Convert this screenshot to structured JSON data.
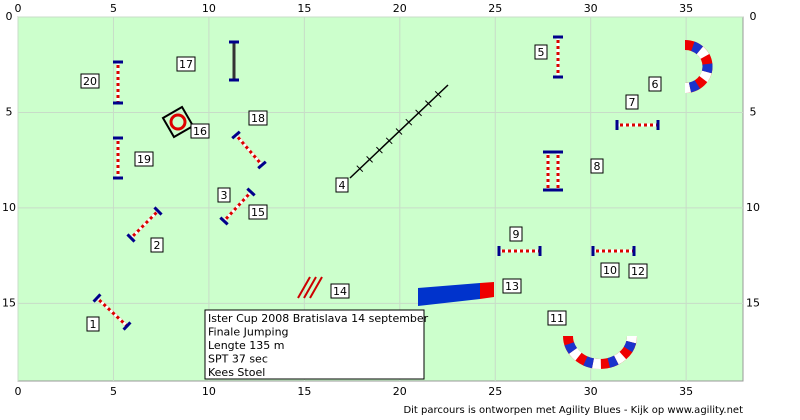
{
  "axes": {
    "x_ticks": [
      0,
      5,
      10,
      15,
      20,
      25,
      30,
      35
    ],
    "y_ticks": [
      0,
      5,
      10,
      15
    ]
  },
  "obstacles": [
    {
      "label": "1"
    },
    {
      "label": "2"
    },
    {
      "label": "3"
    },
    {
      "label": "4"
    },
    {
      "label": "5"
    },
    {
      "label": "6"
    },
    {
      "label": "7"
    },
    {
      "label": "8"
    },
    {
      "label": "9"
    },
    {
      "label": "10"
    },
    {
      "label": "11"
    },
    {
      "label": "12"
    },
    {
      "label": "13"
    },
    {
      "label": "14"
    },
    {
      "label": "15"
    },
    {
      "label": "16"
    },
    {
      "label": "17"
    },
    {
      "label": "18"
    },
    {
      "label": "19"
    },
    {
      "label": "20"
    }
  ],
  "info": {
    "lines": [
      "Ister Cup 2008 Bratislava 14 september",
      "Finale Jumping",
      "Lengte 135 m",
      "SPT 37 sec",
      "Kees Stoel"
    ]
  },
  "footer": "Dit parcours is ontworpen met Agility Blues - Kijk op www.agility.net"
}
